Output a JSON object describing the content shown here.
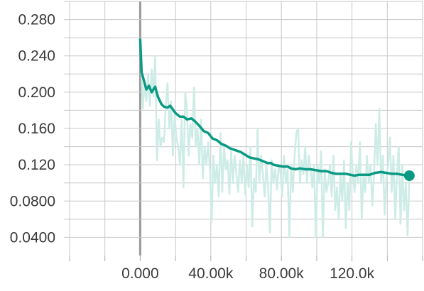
{
  "chart_data": {
    "type": "line",
    "title": "",
    "xlabel": "",
    "ylabel": "",
    "x_tick_labels": [
      "0.000",
      "40.00k",
      "80.00k",
      "120.0k"
    ],
    "x_tick_values": [
      0,
      40000,
      80000,
      120000
    ],
    "y_tick_labels": [
      "0.280",
      "0.240",
      "0.200",
      "0.160",
      "0.120",
      "0.0800",
      "0.0400"
    ],
    "y_tick_values": [
      0.28,
      0.24,
      0.2,
      0.16,
      0.12,
      0.08,
      0.04
    ],
    "xlim": [
      -40000,
      160000
    ],
    "ylim": [
      0.02,
      0.3
    ],
    "grid": true,
    "colors": {
      "smoothed": "#0a9a84",
      "raw": "#cdece6",
      "zero_line": "#9a9a9a"
    },
    "series": [
      {
        "values_raw": [
          [
            0,
            0.258
          ],
          [
            1500,
            0.182
          ],
          [
            2500,
            0.21
          ],
          [
            3500,
            0.19
          ],
          [
            4500,
            0.22
          ],
          [
            5500,
            0.185
          ],
          [
            6500,
            0.225
          ],
          [
            7500,
            0.195
          ],
          [
            8500,
            0.24
          ],
          [
            9500,
            0.125
          ],
          [
            10500,
            0.17
          ],
          [
            11500,
            0.14
          ],
          [
            12500,
            0.15
          ],
          [
            13500,
            0.145
          ],
          [
            14500,
            0.185
          ],
          [
            15500,
            0.21
          ],
          [
            16500,
            0.16
          ],
          [
            17500,
            0.19
          ],
          [
            18500,
            0.13
          ],
          [
            19500,
            0.175
          ],
          [
            20500,
            0.15
          ],
          [
            21500,
            0.14
          ],
          [
            22500,
            0.12
          ],
          [
            23500,
            0.17
          ],
          [
            24500,
            0.095
          ],
          [
            25500,
            0.2
          ],
          [
            26500,
            0.18
          ],
          [
            27500,
            0.13
          ],
          [
            28500,
            0.165
          ],
          [
            29500,
            0.15
          ],
          [
            30500,
            0.205
          ],
          [
            31500,
            0.14
          ],
          [
            32500,
            0.16
          ],
          [
            33500,
            0.12
          ],
          [
            34500,
            0.17
          ],
          [
            35500,
            0.105
          ],
          [
            36500,
            0.14
          ],
          [
            37500,
            0.12
          ],
          [
            38500,
            0.145
          ],
          [
            39500,
            0.115
          ],
          [
            40500,
            0.057
          ],
          [
            41500,
            0.13
          ],
          [
            42500,
            0.1
          ],
          [
            43500,
            0.12
          ],
          [
            44500,
            0.085
          ],
          [
            45500,
            0.155
          ],
          [
            46500,
            0.09
          ],
          [
            47500,
            0.14
          ],
          [
            48500,
            0.115
          ],
          [
            49500,
            0.125
          ],
          [
            50500,
            0.088
          ],
          [
            51500,
            0.135
          ],
          [
            52500,
            0.1
          ],
          [
            53500,
            0.13
          ],
          [
            54500,
            0.11
          ],
          [
            55500,
            0.09
          ],
          [
            56500,
            0.125
          ],
          [
            57500,
            0.1
          ],
          [
            58500,
            0.13
          ],
          [
            59500,
            0.087
          ],
          [
            60500,
            0.12
          ],
          [
            61500,
            0.095
          ],
          [
            62500,
            0.14
          ],
          [
            63500,
            0.052
          ],
          [
            64500,
            0.105
          ],
          [
            65500,
            0.09
          ],
          [
            66500,
            0.16
          ],
          [
            67500,
            0.1
          ],
          [
            68500,
            0.13
          ],
          [
            69500,
            0.11
          ],
          [
            70500,
            0.085
          ],
          [
            71500,
            0.12
          ],
          [
            72500,
            0.095
          ],
          [
            73500,
            0.045
          ],
          [
            74500,
            0.125
          ],
          [
            75500,
            0.1
          ],
          [
            76500,
            0.115
          ],
          [
            77500,
            0.093
          ],
          [
            78500,
            0.12
          ],
          [
            79500,
            0.11
          ],
          [
            80500,
            0.085
          ],
          [
            81500,
            0.13
          ],
          [
            82500,
            0.1
          ],
          [
            83500,
            0.115
          ],
          [
            84500,
            0.04
          ],
          [
            85500,
            0.12
          ],
          [
            86500,
            0.09
          ],
          [
            87500,
            0.13
          ],
          [
            88500,
            0.155
          ],
          [
            89500,
            0.16
          ],
          [
            90500,
            0.1
          ],
          [
            91500,
            0.125
          ],
          [
            92500,
            0.11
          ],
          [
            93500,
            0.14
          ],
          [
            94500,
            0.1
          ],
          [
            95500,
            0.13
          ],
          [
            96500,
            0.115
          ],
          [
            97500,
            0.095
          ],
          [
            98500,
            0.12
          ],
          [
            99500,
            0.04
          ],
          [
            100500,
            0.12
          ],
          [
            101500,
            0.1
          ],
          [
            102500,
            0.135
          ],
          [
            103500,
            0.04
          ],
          [
            104500,
            0.115
          ],
          [
            105500,
            0.09
          ],
          [
            106500,
            0.1
          ],
          [
            107500,
            0.12
          ],
          [
            108500,
            0.085
          ],
          [
            109500,
            0.13
          ],
          [
            110500,
            0.07
          ],
          [
            111500,
            0.095
          ],
          [
            112500,
            0.06
          ],
          [
            113500,
            0.11
          ],
          [
            114500,
            0.08
          ],
          [
            115500,
            0.125
          ],
          [
            116500,
            0.05
          ],
          [
            117500,
            0.1
          ],
          [
            118500,
            0.07
          ],
          [
            119500,
            0.145
          ],
          [
            120500,
            0.11
          ],
          [
            121500,
            0.09
          ],
          [
            122500,
            0.12
          ],
          [
            123500,
            0.1
          ],
          [
            124500,
            0.145
          ],
          [
            125500,
            0.06
          ],
          [
            126500,
            0.11
          ],
          [
            127500,
            0.09
          ],
          [
            128500,
            0.13
          ],
          [
            129500,
            0.1
          ],
          [
            130500,
            0.12
          ],
          [
            131500,
            0.075
          ],
          [
            132500,
            0.11
          ],
          [
            133500,
            0.165
          ],
          [
            134500,
            0.12
          ],
          [
            135500,
            0.182
          ],
          [
            136500,
            0.1
          ],
          [
            137500,
            0.13
          ],
          [
            138500,
            0.065
          ],
          [
            139500,
            0.105
          ],
          [
            140500,
            0.12
          ],
          [
            141500,
            0.15
          ],
          [
            142500,
            0.09
          ],
          [
            143500,
            0.13
          ],
          [
            144500,
            0.06
          ],
          [
            145500,
            0.11
          ],
          [
            146500,
            0.14
          ],
          [
            147500,
            0.055
          ],
          [
            148500,
            0.12
          ],
          [
            149500,
            0.07
          ],
          [
            150500,
            0.1
          ],
          [
            151500,
            0.042
          ],
          [
            152500,
            0.107
          ]
        ],
        "values_smoothed": [
          [
            0,
            0.258
          ],
          [
            800,
            0.222
          ],
          [
            2500,
            0.21
          ],
          [
            3500,
            0.203
          ],
          [
            5000,
            0.207
          ],
          [
            6500,
            0.2
          ],
          [
            8500,
            0.206
          ],
          [
            10000,
            0.195
          ],
          [
            12000,
            0.187
          ],
          [
            13500,
            0.184
          ],
          [
            15500,
            0.183
          ],
          [
            17000,
            0.185
          ],
          [
            20000,
            0.177
          ],
          [
            22500,
            0.173
          ],
          [
            24500,
            0.173
          ],
          [
            26500,
            0.17
          ],
          [
            29000,
            0.171
          ],
          [
            31000,
            0.168
          ],
          [
            33500,
            0.163
          ],
          [
            36000,
            0.157
          ],
          [
            38500,
            0.155
          ],
          [
            41000,
            0.149
          ],
          [
            43500,
            0.147
          ],
          [
            46000,
            0.143
          ],
          [
            48500,
            0.141
          ],
          [
            51000,
            0.138
          ],
          [
            54000,
            0.136
          ],
          [
            57000,
            0.134
          ],
          [
            59500,
            0.131
          ],
          [
            62000,
            0.128
          ],
          [
            64500,
            0.127
          ],
          [
            67000,
            0.126
          ],
          [
            69500,
            0.124
          ],
          [
            72000,
            0.122
          ],
          [
            74000,
            0.122
          ],
          [
            75500,
            0.12
          ],
          [
            78000,
            0.119
          ],
          [
            80500,
            0.118
          ],
          [
            83500,
            0.118
          ],
          [
            85500,
            0.116
          ],
          [
            88000,
            0.115
          ],
          [
            90500,
            0.116
          ],
          [
            93500,
            0.115
          ],
          [
            96500,
            0.115
          ],
          [
            99500,
            0.114
          ],
          [
            102500,
            0.113
          ],
          [
            105500,
            0.113
          ],
          [
            108500,
            0.111
          ],
          [
            111000,
            0.11
          ],
          [
            114000,
            0.11
          ],
          [
            116500,
            0.11
          ],
          [
            119000,
            0.109
          ],
          [
            121500,
            0.108
          ],
          [
            124000,
            0.109
          ],
          [
            127000,
            0.109
          ],
          [
            130000,
            0.109
          ],
          [
            133000,
            0.111
          ],
          [
            136500,
            0.112
          ],
          [
            139500,
            0.111
          ],
          [
            142500,
            0.11
          ],
          [
            145500,
            0.11
          ],
          [
            148500,
            0.109
          ],
          [
            151000,
            0.108
          ],
          [
            152500,
            0.108
          ]
        ]
      }
    ]
  }
}
